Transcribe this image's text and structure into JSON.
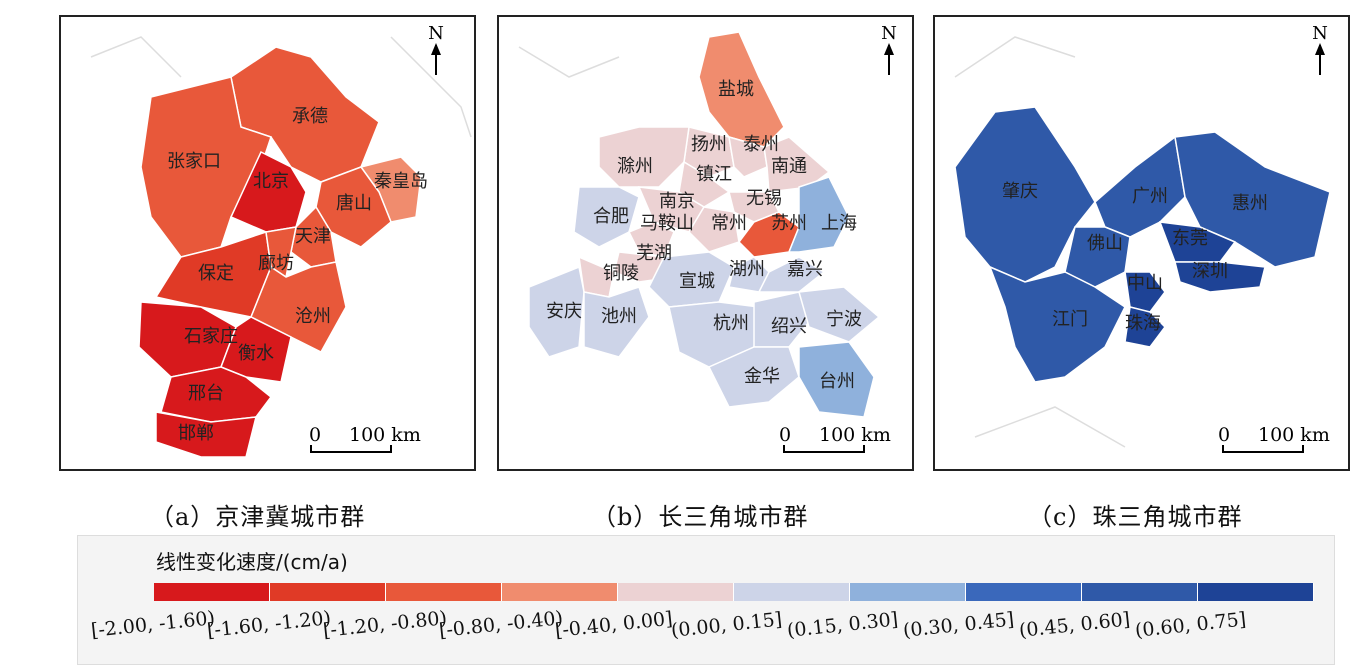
{
  "panels": [
    {
      "caption": "（a）京津冀城市群",
      "labels": [
        "承德",
        "张家口",
        "北京",
        "秦皇岛",
        "唐山",
        "天津",
        "保定",
        "廊坊",
        "沧州",
        "石家庄",
        "衡水",
        "邢台",
        "邯郸"
      ],
      "north": "N",
      "scale_zero": "0",
      "scale_text": "100 km"
    },
    {
      "caption": "（b）长三角城市群",
      "labels": [
        "盐城",
        "扬州",
        "泰州",
        "滁州",
        "镇江",
        "南通",
        "南京",
        "无锡",
        "合肥",
        "马鞍山",
        "常州",
        "苏州",
        "上海",
        "芜湖",
        "铜陵",
        "宣城",
        "湖州",
        "嘉兴",
        "安庆",
        "池州",
        "杭州",
        "绍兴",
        "宁波",
        "金华",
        "台州"
      ],
      "north": "N",
      "scale_zero": "0",
      "scale_text": "100 km"
    },
    {
      "caption": "（c）珠三角城市群",
      "labels": [
        "肇庆",
        "广州",
        "惠州",
        "佛山",
        "东莞",
        "中山",
        "深圳",
        "江门",
        "珠海"
      ],
      "north": "N",
      "scale_zero": "0",
      "scale_text": "100 km"
    }
  ],
  "legend": {
    "title": "线性变化速度/(cm/a)",
    "classes": [
      {
        "label": "[-2.00, -1.60)",
        "color": "#d7191c"
      },
      {
        "label": "[-1.60, -1.20)",
        "color": "#e03a26"
      },
      {
        "label": "[-1.20, -0.80)",
        "color": "#e8583a"
      },
      {
        "label": "[-0.80, -0.40)",
        "color": "#f08c6e"
      },
      {
        "label": "[-0.40, 0.00]",
        "color": "#ecd2d3"
      },
      {
        "label": "(0.00, 0.15]",
        "color": "#cdd4e8"
      },
      {
        "label": "(0.15, 0.30]",
        "color": "#8fb1dc"
      },
      {
        "label": "(0.30, 0.45]",
        "color": "#3a68bb"
      },
      {
        "label": "(0.45, 0.60]",
        "color": "#2f59a8"
      },
      {
        "label": "(0.60, 0.75]",
        "color": "#1e4396"
      }
    ]
  }
}
